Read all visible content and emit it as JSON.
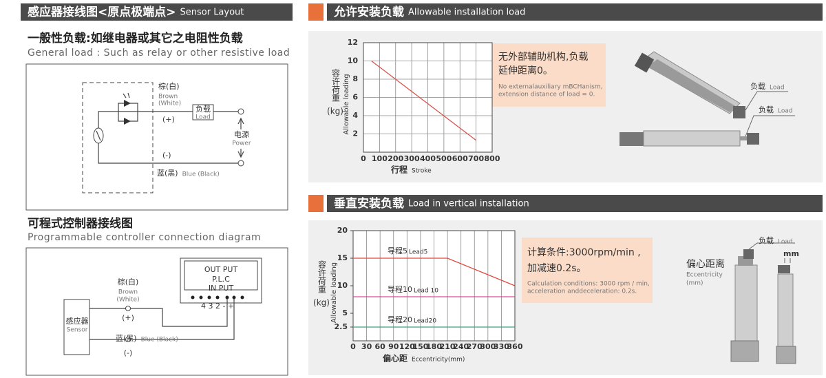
{
  "sensor_layout": {
    "title": "感应器接线图<原点极端点>",
    "title_en": "Sensor Layout",
    "general": {
      "title": "一般性负载:如继电器或其它之电阻性负载",
      "subtitle": "General load : Such as relay or other resistive load",
      "brown": "棕(白)",
      "brown_en": "Brown",
      "white_en": "(White)",
      "plus": "(+)",
      "load": "负载",
      "load_en": "Load",
      "power": "电源",
      "power_en": "Power",
      "minus": "(-)",
      "blue": "蓝(黑)",
      "blue_en": "Blue (Black)"
    },
    "plc": {
      "title": "可程式控制器接线图",
      "subtitle": "Programmable controller connection diagram",
      "out": "OUT PUT",
      "plc": "P.L.C",
      "in": "IN PUT",
      "pins": "4 3 2 - +",
      "brown": "棕(白)",
      "brown_en": "Brown",
      "white_en": "(White)",
      "plus": "(+)",
      "sensor": "感应器",
      "sensor_en": "Sensor",
      "blue": "蓝(黑)",
      "blue_en": "Blue (Black)",
      "minus": "(-)"
    }
  },
  "horizontal": {
    "title": "允许安装负载",
    "title_en": "Allowable installation load",
    "note": [
      "无外部辅助机构,负载",
      "延伸距离0。"
    ],
    "note_en": [
      "No externalauxiliary mBCHanism,",
      "extension distance of load = 0."
    ],
    "load_labels": [
      {
        "zh": "负载",
        "en": "Load"
      },
      {
        "zh": "负载",
        "en": "Load"
      }
    ]
  },
  "vertical": {
    "title": "垂直安装负载",
    "title_en": "Load in vertical installation",
    "note": [
      "计算条件:3000rpm/min ,",
      "加减速0.2s。"
    ],
    "note_en": [
      "Calculation conditions: 3000 rpm / min,",
      "acceleration anddeceleration: 0.2s."
    ],
    "load_label": {
      "zh": "负载",
      "en": "Load"
    },
    "eccentricity": "偏心距离",
    "eccentricity_en": "Eccentricity",
    "eccentricity_unit": "(mm)",
    "mm": "mm"
  },
  "chart_data": [
    {
      "type": "line",
      "ylabel": "容许荷重",
      "ylabel_unit": "(kg)",
      "ylabel_en": "Allowable loading",
      "xlabel": "行程",
      "xlabel_en": "Stroke",
      "xlim": [
        0,
        800
      ],
      "xticks": [
        0,
        100,
        200,
        300,
        400,
        500,
        600,
        700,
        800
      ],
      "ylim": [
        0,
        12
      ],
      "yticks": [
        2,
        4,
        6,
        8,
        10,
        12
      ],
      "grid": "both",
      "series": [
        {
          "color": "#d9534f",
          "x": [
            50,
            700
          ],
          "values": [
            10,
            1.3
          ]
        }
      ]
    },
    {
      "type": "line",
      "ylabel": "容许荷重",
      "ylabel_unit": "(kg)",
      "ylabel_en": "Allowable loading",
      "xlabel": "偏心距",
      "xlabel_en": "Eccentricity(mm)",
      "xlim": [
        0,
        360
      ],
      "xticks": [
        0,
        30,
        60,
        90,
        120,
        150,
        180,
        210,
        240,
        270,
        300,
        330,
        360
      ],
      "ylim": [
        0,
        20
      ],
      "yticks": [
        2.5,
        5,
        10,
        15,
        20
      ],
      "grid": "x",
      "series": [
        {
          "name": "导程5",
          "name_en": "Lead5",
          "color": "#e0473c",
          "x": [
            0,
            210,
            360
          ],
          "values": [
            15,
            15,
            10
          ]
        },
        {
          "name": "导程10",
          "name_en": "Lead 10",
          "color": "#e0479a",
          "x": [
            0,
            360
          ],
          "values": [
            8,
            8
          ]
        },
        {
          "name": "导程20",
          "name_en": "Lead20",
          "color": "#3aa57a",
          "x": [
            0,
            360
          ],
          "values": [
            2.5,
            2.5
          ]
        }
      ]
    }
  ]
}
